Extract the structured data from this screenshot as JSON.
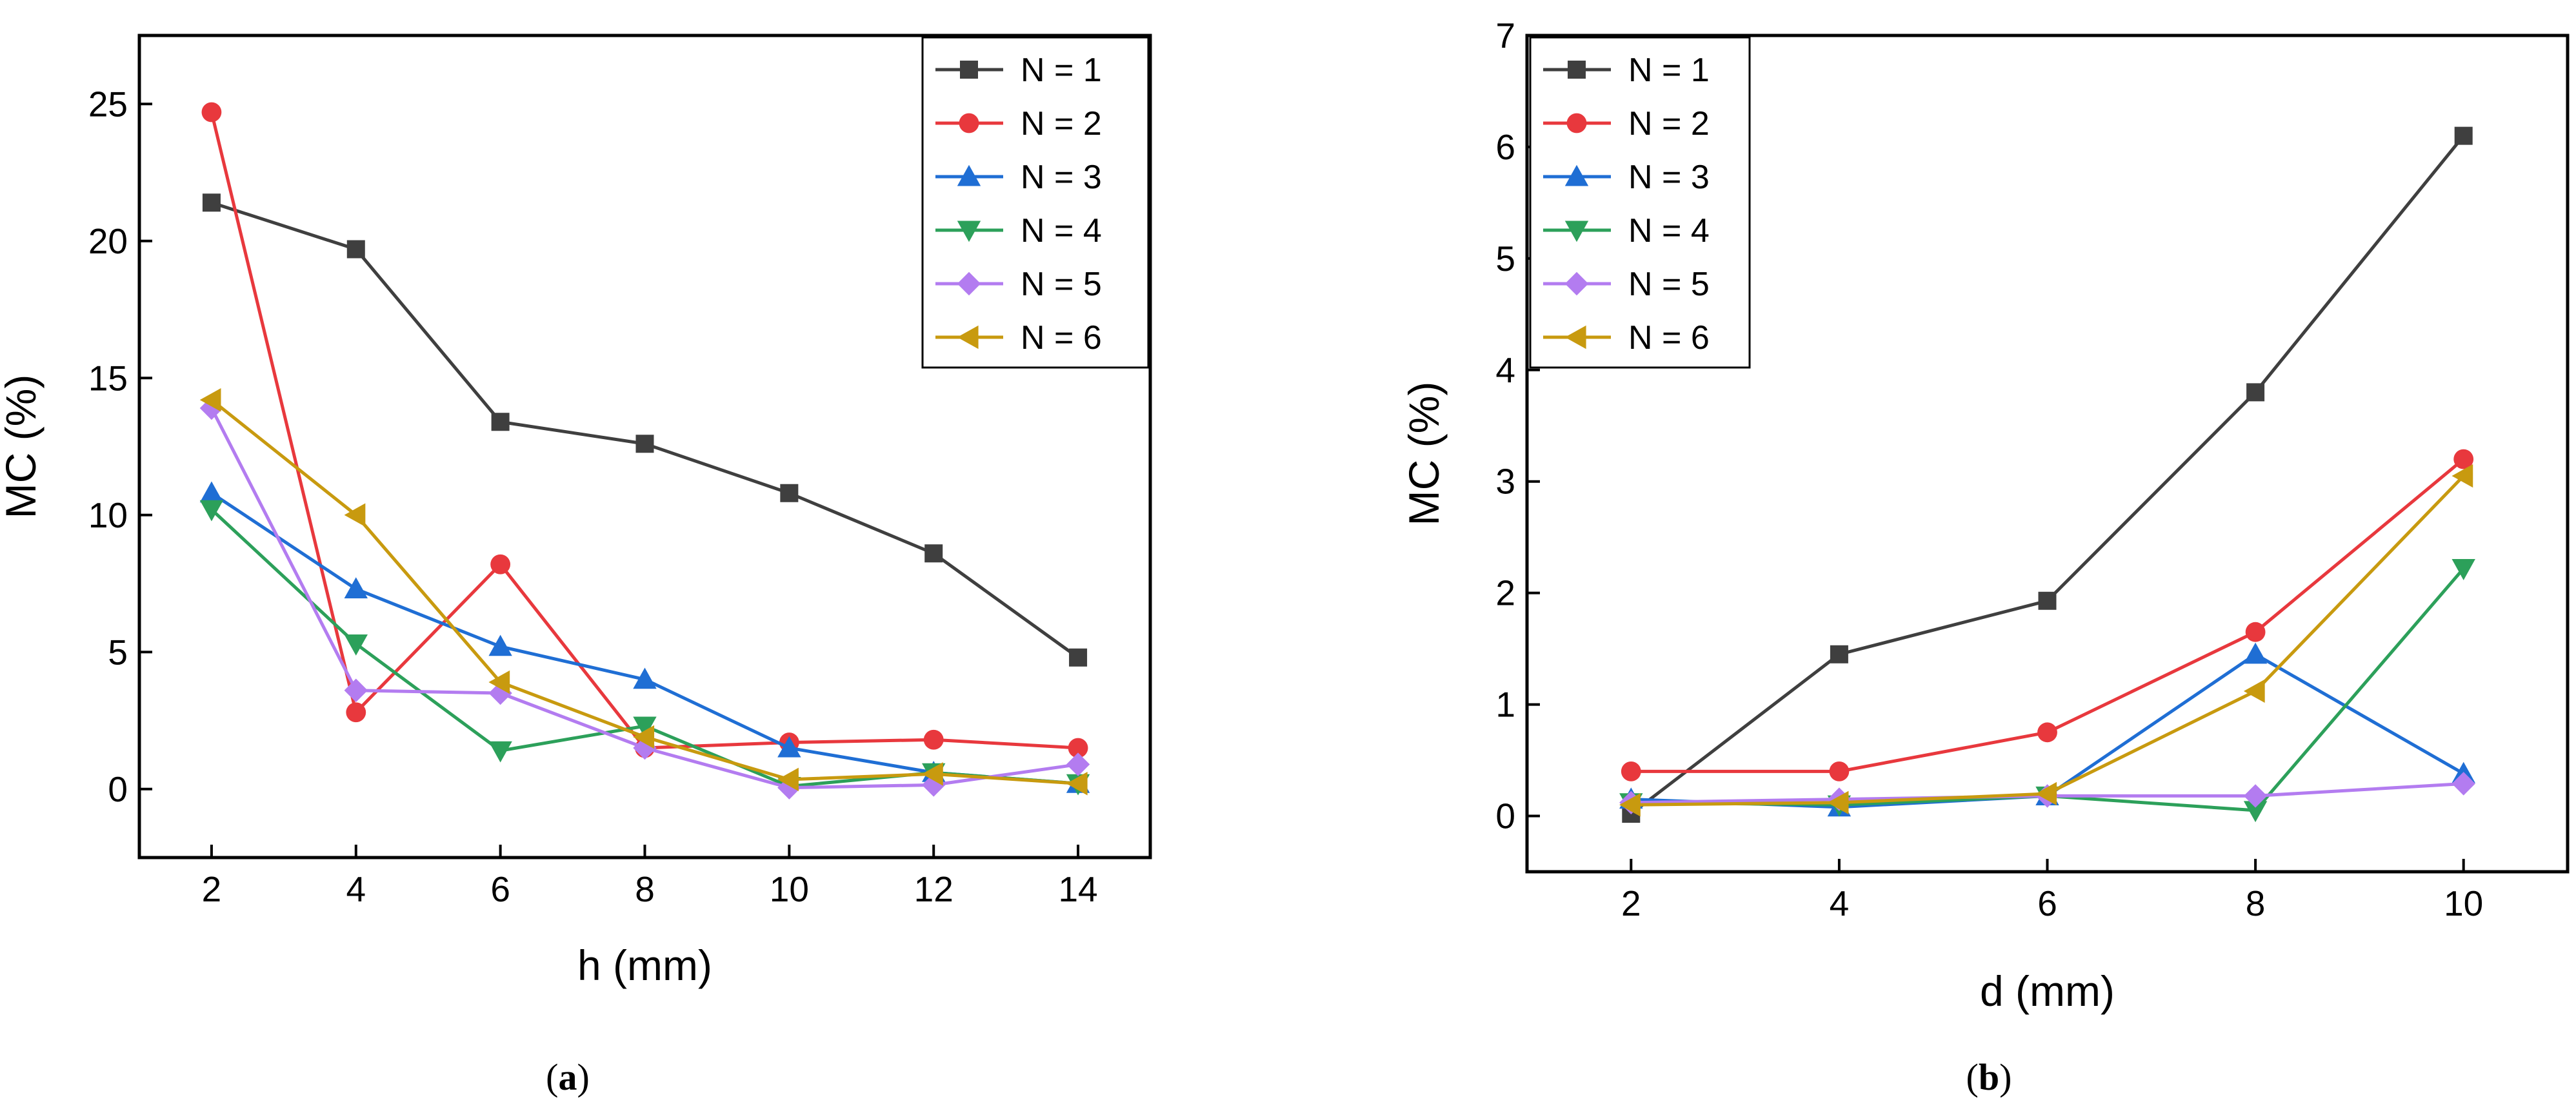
{
  "chart_data": [
    {
      "type": "line",
      "panel": "a",
      "caption_open": "(",
      "caption_letter": "a",
      "caption_close": ")",
      "xlabel": "h (mm)",
      "ylabel": "MC (%)",
      "x": [
        2,
        4,
        6,
        8,
        10,
        12,
        14
      ],
      "xlim": [
        1,
        15
      ],
      "ylim": [
        -2.5,
        27.5
      ],
      "xticks": [
        "2",
        "4",
        "6",
        "8",
        "10",
        "12",
        "14"
      ],
      "yticks": [
        "0",
        "5",
        "10",
        "15",
        "20",
        "25"
      ],
      "legend_position": "top-right",
      "series": [
        {
          "name": "N = 1",
          "color": "#3f3f3f",
          "marker": "square",
          "values": [
            21.4,
            19.7,
            13.4,
            12.6,
            10.8,
            8.6,
            4.8
          ]
        },
        {
          "name": "N = 2",
          "color": "#e8383d",
          "marker": "circle",
          "values": [
            24.7,
            2.8,
            8.2,
            1.5,
            1.7,
            1.8,
            1.5
          ]
        },
        {
          "name": "N = 3",
          "color": "#1f6ed4",
          "marker": "triangle-up",
          "values": [
            10.8,
            7.3,
            5.2,
            4.0,
            1.5,
            0.6,
            0.2
          ]
        },
        {
          "name": "N = 4",
          "color": "#2ca05a",
          "marker": "triangle-down",
          "values": [
            10.2,
            5.3,
            1.4,
            2.3,
            0.1,
            0.6,
            0.2
          ]
        },
        {
          "name": "N = 5",
          "color": "#b37cf0",
          "marker": "diamond",
          "values": [
            13.9,
            3.6,
            3.5,
            1.5,
            0.05,
            0.15,
            0.9
          ]
        },
        {
          "name": "N = 6",
          "color": "#c89a0f",
          "marker": "triangle-left",
          "values": [
            14.2,
            10.0,
            3.9,
            1.9,
            0.35,
            0.55,
            0.2
          ]
        }
      ]
    },
    {
      "type": "line",
      "panel": "b",
      "caption_open": "(",
      "caption_letter": "b",
      "caption_close": ")",
      "xlabel": "d (mm)",
      "ylabel": "MC (%)",
      "x": [
        2,
        4,
        6,
        8,
        10
      ],
      "xlim": [
        1,
        11
      ],
      "ylim": [
        -0.5,
        7
      ],
      "xticks": [
        "2",
        "4",
        "6",
        "8",
        "10"
      ],
      "yticks": [
        "0",
        "1",
        "2",
        "3",
        "4",
        "5",
        "6",
        "7"
      ],
      "legend_position": "top-left",
      "series": [
        {
          "name": "N = 1",
          "color": "#3f3f3f",
          "marker": "square",
          "values": [
            0.02,
            1.45,
            1.93,
            3.8,
            6.1
          ]
        },
        {
          "name": "N = 2",
          "color": "#e8383d",
          "marker": "circle",
          "values": [
            0.4,
            0.4,
            0.75,
            1.65,
            3.2
          ]
        },
        {
          "name": "N = 3",
          "color": "#1f6ed4",
          "marker": "triangle-up",
          "values": [
            0.15,
            0.08,
            0.18,
            1.45,
            0.38
          ]
        },
        {
          "name": "N = 4",
          "color": "#2ca05a",
          "marker": "triangle-down",
          "values": [
            0.12,
            0.1,
            0.18,
            0.05,
            2.22
          ]
        },
        {
          "name": "N = 5",
          "color": "#b37cf0",
          "marker": "diamond",
          "values": [
            0.12,
            0.15,
            0.18,
            0.18,
            0.29
          ]
        },
        {
          "name": "N = 6",
          "color": "#c89a0f",
          "marker": "triangle-left",
          "values": [
            0.1,
            0.12,
            0.2,
            1.12,
            3.05
          ]
        }
      ]
    }
  ]
}
